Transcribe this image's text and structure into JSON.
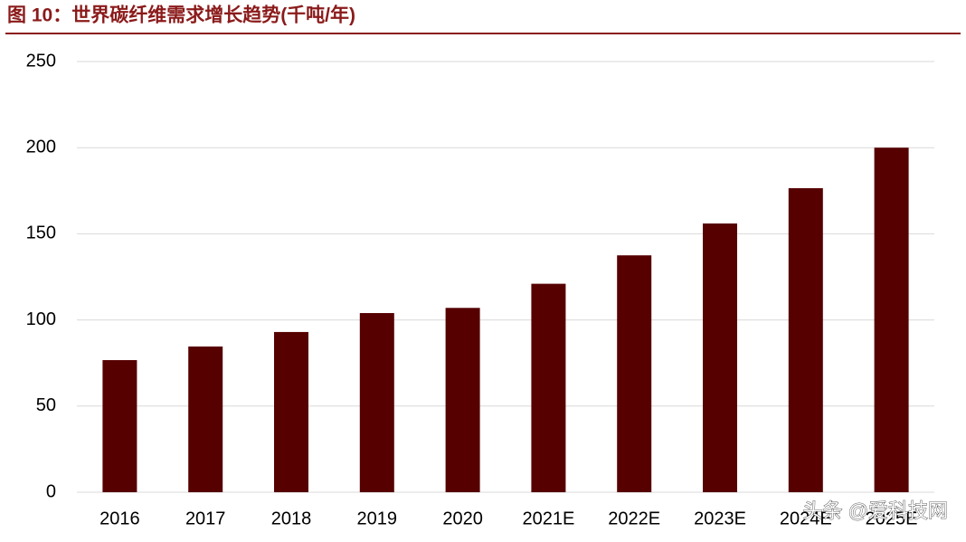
{
  "chart_data": {
    "type": "bar",
    "title": "图 10：世界碳纤维需求增长趋势(千吨/年)",
    "categories": [
      "2016",
      "2017",
      "2018",
      "2019",
      "2020",
      "2021E",
      "2022E",
      "2023E",
      "2024E",
      "2025E"
    ],
    "values": [
      76.7,
      84.6,
      93,
      104,
      107,
      121,
      137.5,
      156,
      176.5,
      200
    ],
    "color": "#560000",
    "ylim": [
      0,
      250
    ],
    "yticks": [
      0,
      50,
      100,
      150,
      200,
      250
    ],
    "grid": true,
    "watermark": "头条 @爱科技网"
  }
}
